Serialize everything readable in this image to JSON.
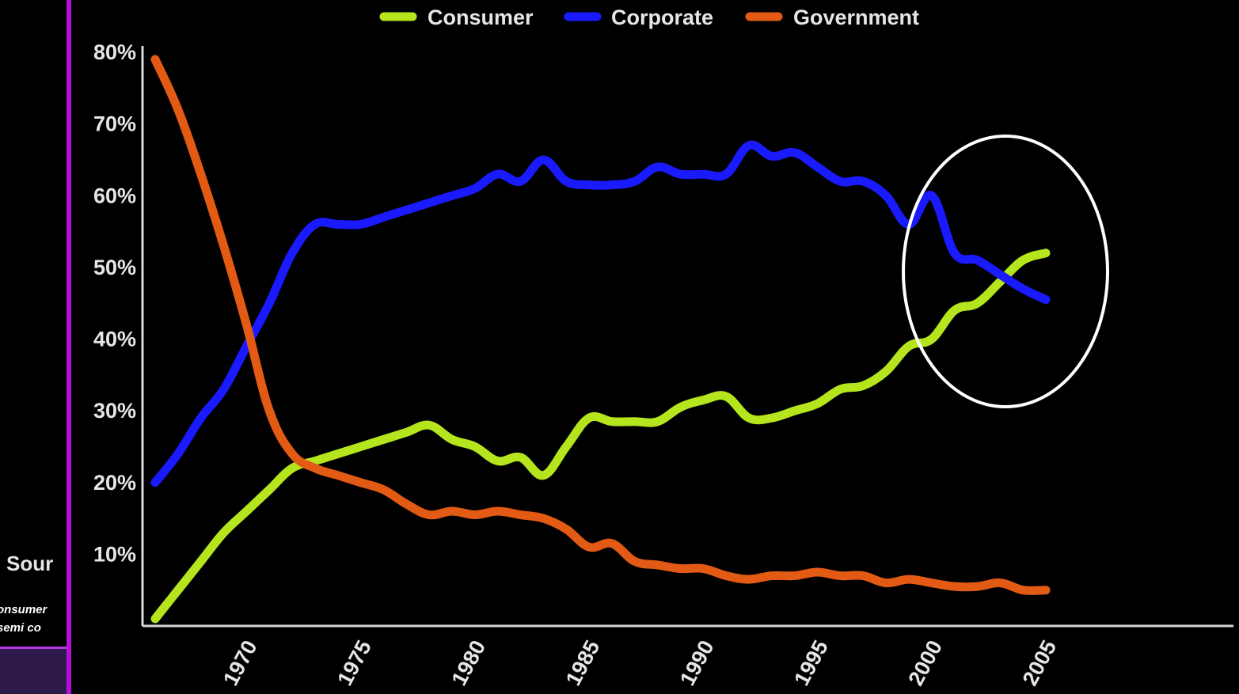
{
  "left_panel": {
    "source_text": "Sour",
    "note_line_1": "onsumer",
    "note_line_2": "semi co"
  },
  "annotation": {
    "shape": "ellipse",
    "color": "#ffffff",
    "highlights": "crossover of Consumer and Corporate around 2003"
  },
  "chart_data": {
    "type": "line",
    "title": "",
    "xlabel": "",
    "ylabel": "",
    "xlim": [
      1966,
      2013
    ],
    "ylim": [
      0,
      80
    ],
    "y_ticks": [
      10,
      20,
      30,
      40,
      50,
      60,
      70,
      80
    ],
    "y_tick_labels": [
      "10%",
      "20%",
      "30%",
      "40%",
      "50%",
      "60%",
      "70%",
      "80%"
    ],
    "x_ticks": [
      1970,
      1975,
      1980,
      1985,
      1990,
      1995,
      2000,
      2005
    ],
    "x_tick_labels": [
      "1970",
      "1975",
      "1980",
      "1985",
      "1990",
      "1995",
      "2000",
      "2005"
    ],
    "grid": false,
    "legend_position": "top-center",
    "series": [
      {
        "name": "Consumer",
        "color": "#b5e61d",
        "x": [
          1966,
          1967,
          1968,
          1969,
          1970,
          1971,
          1972,
          1973,
          1974,
          1975,
          1976,
          1977,
          1978,
          1979,
          1980,
          1981,
          1982,
          1983,
          1984,
          1985,
          1986,
          1987,
          1988,
          1989,
          1990,
          1991,
          1992,
          1993,
          1994,
          1995,
          1996,
          1997,
          1998,
          1999,
          2000,
          2001,
          2002,
          2003,
          2004,
          2005
        ],
        "values": [
          1,
          5,
          9,
          13,
          16,
          19,
          22,
          23,
          24,
          25,
          26,
          27,
          28,
          26,
          25,
          23,
          23.5,
          21,
          25,
          29,
          28.5,
          28.5,
          28.5,
          30.5,
          31.5,
          32,
          29,
          29,
          30,
          31,
          33,
          33.5,
          35.5,
          39,
          40,
          44,
          45,
          48,
          51,
          52
        ]
      },
      {
        "name": "Corporate",
        "color": "#1a1aff",
        "x": [
          1966,
          1967,
          1968,
          1969,
          1970,
          1971,
          1972,
          1973,
          1974,
          1975,
          1976,
          1977,
          1978,
          1979,
          1980,
          1981,
          1982,
          1983,
          1984,
          1985,
          1986,
          1987,
          1988,
          1989,
          1990,
          1991,
          1992,
          1993,
          1994,
          1995,
          1996,
          1997,
          1998,
          1999,
          2000,
          2001,
          2002,
          2003,
          2004,
          2005
        ],
        "values": [
          20,
          24,
          29,
          33,
          39,
          45,
          52,
          56,
          56,
          56,
          57,
          58,
          59,
          60,
          61,
          63,
          62,
          65,
          62,
          61.5,
          61.5,
          62,
          64,
          63,
          63,
          63,
          67,
          65.5,
          66,
          64,
          62,
          62,
          60,
          56,
          60,
          52,
          51,
          49,
          47,
          45.5
        ]
      },
      {
        "name": "Government",
        "color": "#e35a14",
        "x": [
          1966,
          1967,
          1968,
          1969,
          1970,
          1971,
          1972,
          1973,
          1974,
          1975,
          1976,
          1977,
          1978,
          1979,
          1980,
          1981,
          1982,
          1983,
          1984,
          1985,
          1986,
          1987,
          1988,
          1989,
          1990,
          1991,
          1992,
          1993,
          1994,
          1995,
          1996,
          1997,
          1998,
          1999,
          2000,
          2001,
          2002,
          2003,
          2004,
          2005
        ],
        "values": [
          79,
          72,
          63,
          53,
          42,
          30,
          24,
          22,
          21,
          20,
          19,
          17,
          15.5,
          16,
          15.5,
          16,
          15.5,
          15,
          13.5,
          11,
          11.5,
          9,
          8.5,
          8,
          8,
          7,
          6.5,
          7,
          7,
          7.5,
          7,
          7,
          6,
          6.5,
          6,
          5.5,
          5.5,
          6,
          5,
          5
        ]
      }
    ]
  }
}
